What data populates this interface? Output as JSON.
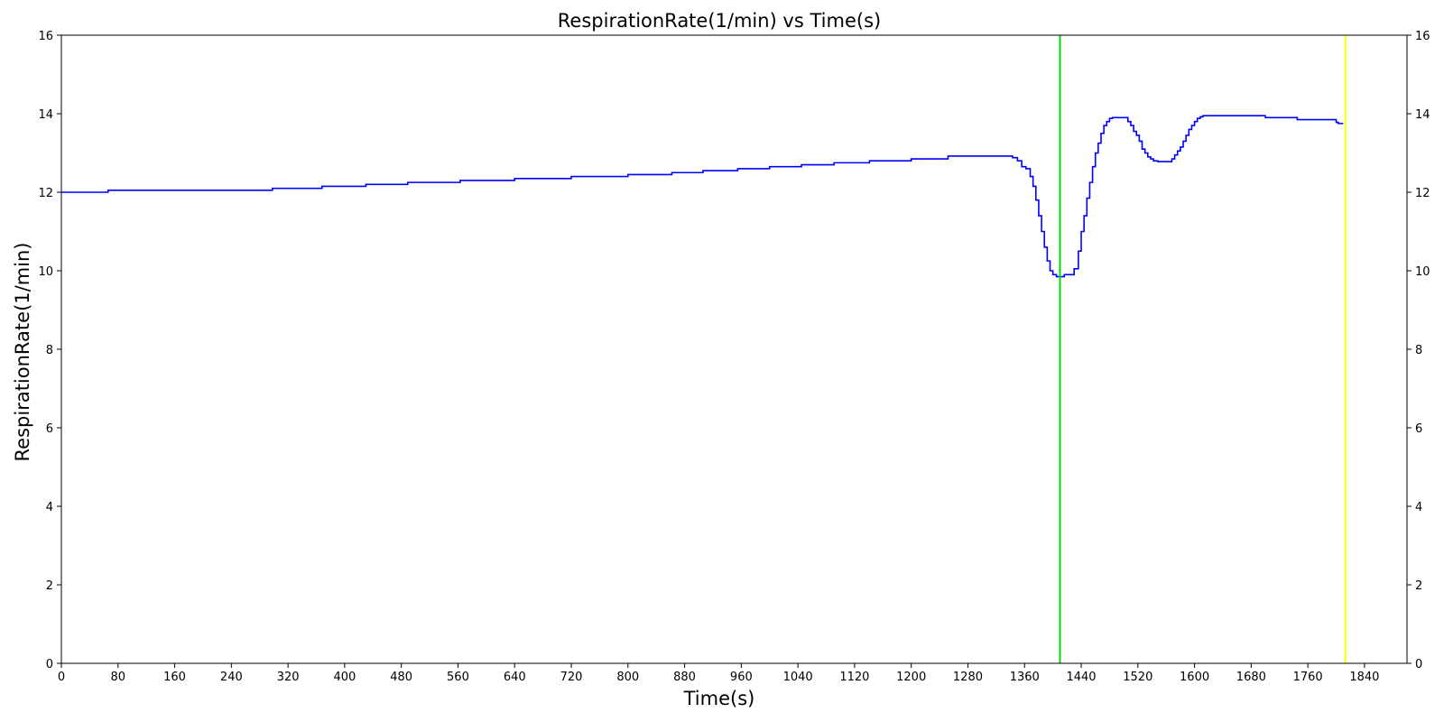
{
  "chart_data": {
    "type": "line",
    "title": "RespirationRate(1/min) vs Time(s)",
    "xlabel": "Time(s)",
    "ylabel": "RespirationRate(1/min)",
    "xlim": [
      0,
      1900
    ],
    "ylim": [
      0,
      16
    ],
    "x_ticks": [
      0,
      80,
      160,
      240,
      320,
      400,
      480,
      560,
      640,
      720,
      800,
      880,
      960,
      1040,
      1120,
      1200,
      1280,
      1360,
      1440,
      1520,
      1600,
      1680,
      1760,
      1840
    ],
    "y_ticks": [
      0,
      2,
      4,
      6,
      8,
      10,
      12,
      14,
      16
    ],
    "right_y_ticks": true,
    "grid": false,
    "series": [
      {
        "color": "#0000ff",
        "step": true,
        "x": [
          0,
          66,
          298,
          368,
          430,
          489,
          563,
          640,
          720,
          800,
          862,
          906,
          955,
          1000,
          1045,
          1091,
          1141,
          1200,
          1252,
          1343,
          1350,
          1356,
          1362,
          1368,
          1372,
          1376,
          1380,
          1384,
          1388,
          1392,
          1396,
          1400,
          1405,
          1410,
          1416,
          1423,
          1430,
          1436,
          1440,
          1444,
          1448,
          1452,
          1456,
          1460,
          1464,
          1468,
          1472,
          1476,
          1480,
          1484,
          1488,
          1492,
          1506,
          1510,
          1514,
          1518,
          1522,
          1526,
          1530,
          1534,
          1538,
          1542,
          1548,
          1552,
          1568,
          1572,
          1576,
          1580,
          1584,
          1588,
          1592,
          1596,
          1600,
          1604,
          1608,
          1612,
          1617,
          1700,
          1745,
          1800,
          1803,
          1810
        ],
        "y": [
          12.0,
          12.05,
          12.1,
          12.15,
          12.2,
          12.25,
          12.3,
          12.35,
          12.4,
          12.45,
          12.5,
          12.55,
          12.6,
          12.65,
          12.7,
          12.75,
          12.8,
          12.85,
          12.92,
          12.88,
          12.8,
          12.65,
          12.6,
          12.4,
          12.15,
          11.8,
          11.4,
          11.0,
          10.6,
          10.25,
          10.0,
          9.9,
          9.85,
          9.85,
          9.9,
          9.9,
          10.05,
          10.5,
          11.0,
          11.4,
          11.85,
          12.25,
          12.65,
          13.0,
          13.25,
          13.5,
          13.7,
          13.8,
          13.88,
          13.9,
          13.9,
          13.9,
          13.8,
          13.7,
          13.55,
          13.45,
          13.3,
          13.1,
          13.0,
          12.9,
          12.85,
          12.8,
          12.78,
          12.78,
          12.85,
          12.95,
          13.05,
          13.15,
          13.3,
          13.45,
          13.6,
          13.7,
          13.8,
          13.88,
          13.92,
          13.95,
          13.95,
          13.9,
          13.85,
          13.78,
          13.75,
          13.75
        ]
      }
    ],
    "vlines": [
      {
        "x": 1410,
        "color": "#00dd00"
      },
      {
        "x": 1813,
        "color": "#ffff00"
      }
    ]
  }
}
